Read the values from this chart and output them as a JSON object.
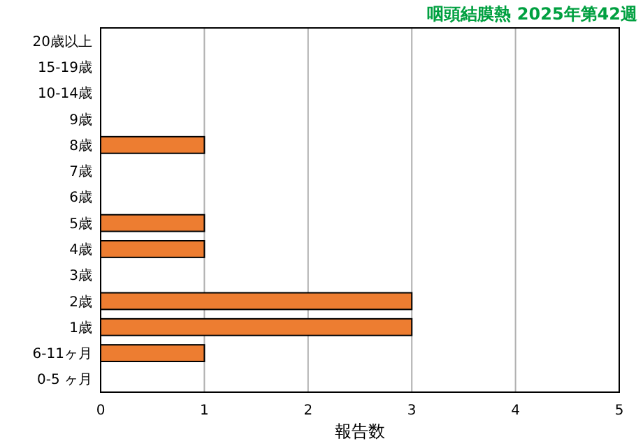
{
  "chart_data": {
    "type": "bar",
    "orientation": "horizontal",
    "title": "咽頭結膜熱 2025年第42週",
    "xlabel": "報告数",
    "categories": [
      "20歳以上",
      "15-19歳",
      "10-14歳",
      "9歳",
      "8歳",
      "7歳",
      "6歳",
      "5歳",
      "4歳",
      "3歳",
      "2歳",
      "1歳",
      "6-11ヶ月",
      "0-5 ヶ月"
    ],
    "values": [
      0,
      0,
      0,
      0,
      1,
      0,
      0,
      1,
      1,
      0,
      3,
      3,
      1,
      0
    ],
    "color": "#ed7d31",
    "xlim": [
      0,
      5
    ],
    "xticks": [
      0,
      1,
      2,
      3,
      4,
      5
    ],
    "grid": "x"
  }
}
